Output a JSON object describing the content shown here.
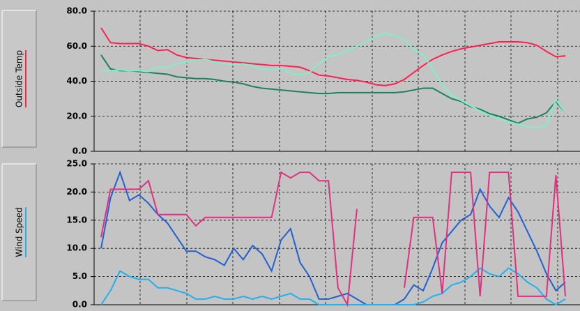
{
  "chart_data": [
    {
      "type": "line",
      "label": "Outside Temp",
      "label_color": "#ff2050",
      "ylim": [
        0,
        80
      ],
      "yticks": [
        {
          "value": 0,
          "label": "0.0"
        },
        {
          "value": 20,
          "label": "20.0"
        },
        {
          "value": 40,
          "label": "40.0"
        },
        {
          "value": 60,
          "label": "60.0"
        },
        {
          "value": 80,
          "label": "80.0"
        }
      ],
      "grid": true,
      "series": [
        {
          "color": "#ff2050",
          "values": [
            70.5,
            62,
            61.5,
            61.5,
            61.5,
            60,
            57.5,
            58,
            55,
            53.5,
            53,
            52.5,
            52,
            51.5,
            51,
            50.5,
            50,
            49.5,
            49,
            49,
            48.5,
            48,
            46,
            43.5,
            43,
            42,
            41,
            40.5,
            39.5,
            38,
            37.5,
            38.5,
            41,
            45,
            49,
            52.5,
            55,
            57,
            58.5,
            59.5,
            60.5,
            61.5,
            62.5,
            62.5,
            62.5,
            62,
            60.5,
            57,
            54,
            54.5
          ]
        },
        {
          "color": "#1e8060",
          "values": [
            55,
            47,
            46,
            46,
            45.5,
            45,
            44.5,
            44,
            42.5,
            42,
            41.5,
            41.5,
            41,
            40,
            39.5,
            38.5,
            37,
            36,
            35.5,
            35,
            34.5,
            34,
            33.5,
            33,
            33,
            33.5,
            33.5,
            33.5,
            33.5,
            33.5,
            33.5,
            33.5,
            34,
            35,
            36,
            36,
            33,
            30,
            28.5,
            25.5,
            24,
            21.5,
            20,
            18,
            16,
            18.5,
            19.5,
            22,
            28.5,
            22
          ]
        },
        {
          "color": "#80f0c8",
          "values": [
            46,
            46,
            46.5,
            46,
            46,
            45.5,
            48,
            48,
            50,
            51,
            52,
            52.5,
            51,
            50,
            49.5,
            50,
            48.5,
            47,
            46.5,
            47.5,
            44.5,
            43.5,
            45,
            50,
            54,
            55.5,
            57.5,
            60,
            62.5,
            65.5,
            67.5,
            66,
            64,
            58,
            55,
            47,
            38,
            32,
            29,
            26,
            23,
            20.5,
            18.5,
            17,
            15.5,
            14,
            13.5,
            15,
            29.5,
            22
          ]
        }
      ]
    },
    {
      "type": "line",
      "label": "Wind Speed",
      "label_color": "#20b0f0",
      "ylim": [
        0,
        25
      ],
      "yticks": [
        {
          "value": 0,
          "label": "0.0"
        },
        {
          "value": 5,
          "label": "5.0"
        },
        {
          "value": 10,
          "label": "10.0"
        },
        {
          "value": 15,
          "label": "15.0"
        },
        {
          "value": 20,
          "label": "20.0"
        },
        {
          "value": 25,
          "label": "25.0"
        }
      ],
      "grid": true,
      "series": [
        {
          "color": "#2060d0",
          "values": [
            10,
            19,
            23.5,
            18.5,
            19.5,
            18,
            16,
            14.5,
            12,
            9.5,
            9.5,
            8.5,
            8,
            7,
            10,
            8,
            10.5,
            9,
            6,
            11.5,
            13.5,
            7.5,
            5,
            1,
            1,
            1.5,
            2,
            1,
            0,
            0,
            0,
            0,
            1,
            3.5,
            2.5,
            6.5,
            11,
            13,
            15,
            16,
            20.5,
            17.5,
            15.5,
            19,
            16.5,
            13,
            9.5,
            5.5,
            2.5,
            4
          ]
        },
        {
          "color": "#20b0f0",
          "values": [
            0,
            2.5,
            6,
            5,
            4.5,
            4.5,
            3,
            3,
            2.5,
            2,
            1,
            1,
            1.5,
            1,
            1,
            1.5,
            1,
            1.5,
            1,
            1.5,
            2,
            1,
            1,
            0,
            0,
            0,
            0,
            0,
            0,
            0,
            0,
            0,
            0,
            0,
            0.5,
            1.5,
            2,
            3.5,
            4,
            5,
            6.5,
            5.5,
            5,
            6.5,
            5.5,
            4,
            3,
            1,
            0,
            1
          ]
        },
        {
          "color": "#e03080",
          "values": [
            12,
            20.5,
            20.5,
            20.5,
            20.5,
            22,
            16,
            16,
            16,
            16,
            14,
            15.5,
            15.5,
            15.5,
            15.5,
            15.5,
            15.5,
            15.5,
            15.5,
            23.5,
            22.5,
            23.5,
            23.5,
            22,
            22,
            3,
            0,
            17,
            null,
            null,
            null,
            null,
            3,
            15.5,
            15.5,
            15.5,
            2,
            23.5,
            23.5,
            23.5,
            1.5,
            23.5,
            23.5,
            23.5,
            1.5,
            1.5,
            1.5,
            1.5,
            23,
            1.5
          ]
        }
      ]
    }
  ]
}
